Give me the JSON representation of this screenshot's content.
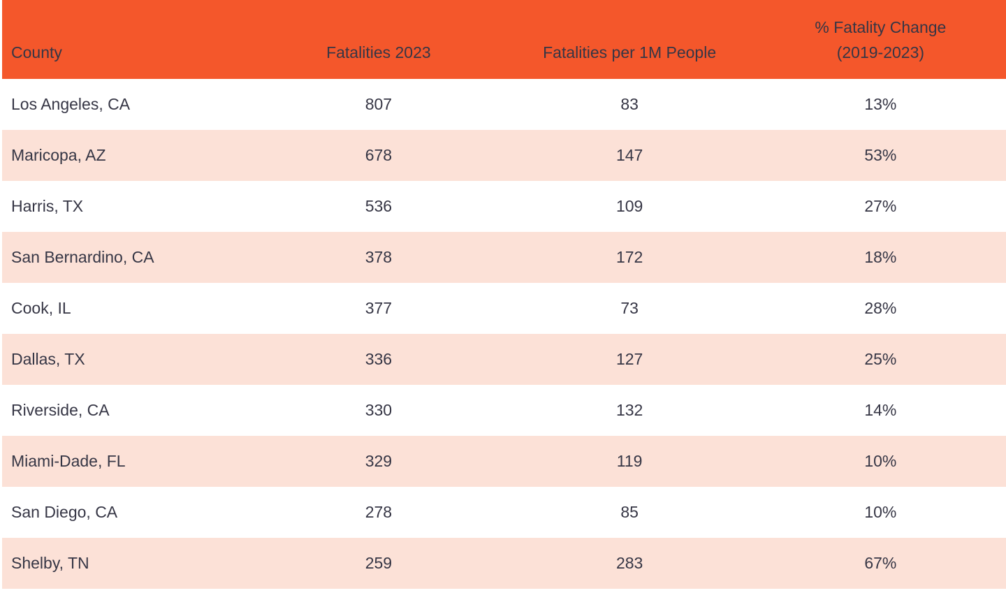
{
  "colors": {
    "header_bg": "#F4572B",
    "row_bg": "#FFFFFF",
    "row_alt_bg": "#FCE1D7",
    "text": "#363645"
  },
  "table": {
    "header": {
      "county": "County",
      "fatalities_2023": "Fatalities 2023",
      "per_1m": "Fatalities per 1M People",
      "pct_change_line1": "% Fatality Change",
      "pct_change_line2": "(2019-2023)"
    },
    "rows": [
      {
        "county": "Los Angeles, CA",
        "fatalities_2023": "807",
        "per_1m": "83",
        "pct_change": "13%"
      },
      {
        "county": "Maricopa, AZ",
        "fatalities_2023": "678",
        "per_1m": "147",
        "pct_change": "53%"
      },
      {
        "county": "Harris, TX",
        "fatalities_2023": "536",
        "per_1m": "109",
        "pct_change": "27%"
      },
      {
        "county": "San Bernardino, CA",
        "fatalities_2023": "378",
        "per_1m": "172",
        "pct_change": "18%"
      },
      {
        "county": "Cook, IL",
        "fatalities_2023": "377",
        "per_1m": "73",
        "pct_change": "28%"
      },
      {
        "county": "Dallas, TX",
        "fatalities_2023": "336",
        "per_1m": "127",
        "pct_change": "25%"
      },
      {
        "county": "Riverside, CA",
        "fatalities_2023": "330",
        "per_1m": "132",
        "pct_change": "14%"
      },
      {
        "county": "Miami-Dade, FL",
        "fatalities_2023": "329",
        "per_1m": "119",
        "pct_change": "10%"
      },
      {
        "county": "San Diego, CA",
        "fatalities_2023": "278",
        "per_1m": "85",
        "pct_change": "10%"
      },
      {
        "county": "Shelby, TN",
        "fatalities_2023": "259",
        "per_1m": "283",
        "pct_change": "67%"
      }
    ]
  },
  "chart_data": {
    "type": "table",
    "columns": [
      "County",
      "Fatalities 2023",
      "Fatalities per 1M People",
      "% Fatality Change (2019-2023)"
    ],
    "rows": [
      [
        "Los Angeles, CA",
        807,
        83,
        "13%"
      ],
      [
        "Maricopa, AZ",
        678,
        147,
        "53%"
      ],
      [
        "Harris, TX",
        536,
        109,
        "27%"
      ],
      [
        "San Bernardino, CA",
        378,
        172,
        "18%"
      ],
      [
        "Cook, IL",
        377,
        73,
        "28%"
      ],
      [
        "Dallas, TX",
        336,
        127,
        "25%"
      ],
      [
        "Riverside, CA",
        330,
        132,
        "14%"
      ],
      [
        "Miami-Dade, FL",
        329,
        119,
        "10%"
      ],
      [
        "San Diego, CA",
        278,
        85,
        "10%"
      ],
      [
        "Shelby, TN",
        259,
        283,
        "67%"
      ]
    ],
    "layout_hints": {
      "header_background": "#F4572B",
      "alternating_row_background": "#FCE1D7",
      "first_column_align": "left",
      "other_columns_align": "center"
    }
  }
}
